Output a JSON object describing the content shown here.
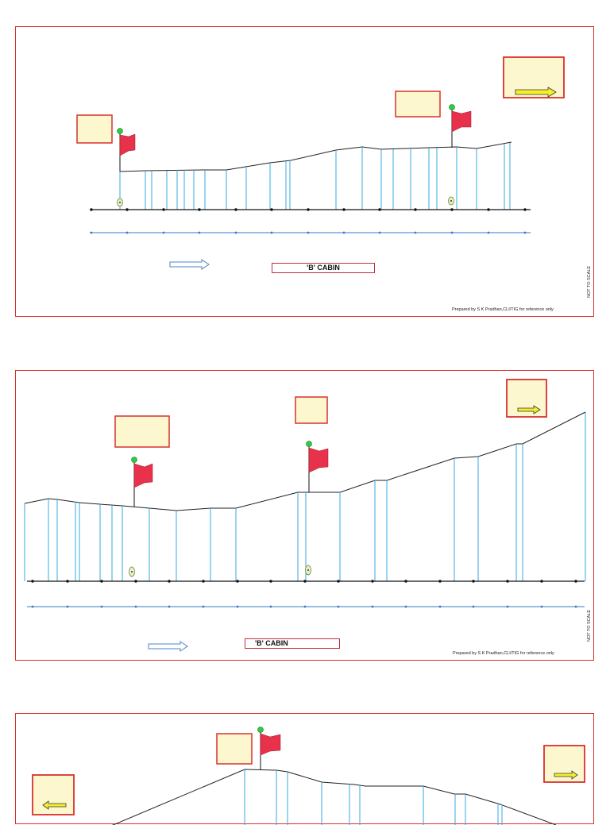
{
  "cabin_label": "'B' CABIN",
  "prepared_by": "Prepared by S K Pradhan,CLI/TIG for reference only",
  "not_to_scale": "NOT TO SCALE",
  "colors": {
    "border": "#d9302c",
    "box_fill": "#fdf7cf",
    "flag": "#e8314a",
    "pole_top": "#2ecc40",
    "arrow_fill": "#f5ee2a",
    "vertical": "#35a8df",
    "blue_line": "#3478c6",
    "hollow_arrow": "#4a86c8"
  },
  "icons": [
    "flag-icon",
    "right-arrow-icon",
    "left-arrow-icon",
    "hollow-arrow-icon",
    "signal-marker-icon"
  ]
}
